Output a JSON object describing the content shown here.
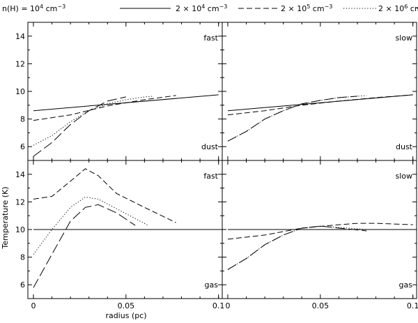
{
  "chart_data": {
    "type": "line",
    "layout": "2x2",
    "legend": {
      "placement": "top",
      "entries": [
        {
          "label_base": "n(H) = 10",
          "label_exp": "4",
          "label_unit": " cm",
          "label_unit_exp": "−3",
          "style": "solid"
        },
        {
          "label_base": "2 × 10",
          "label_exp": "4",
          "label_unit": " cm",
          "label_unit_exp": "−3",
          "style": "short-dash"
        },
        {
          "label_base": "2 × 10",
          "label_exp": "5",
          "label_unit": " cm",
          "label_unit_exp": "−3",
          "style": "dotted"
        },
        {
          "label_base": "2 × 10",
          "label_exp": "6",
          "label_unit": " cm",
          "label_unit_exp": "−3",
          "style": "long-dash"
        }
      ]
    },
    "xlabel": "radius (pc)",
    "ylabel": "Temperature (K)",
    "xlim": [
      -0.003,
      0.102
    ],
    "xticks": [
      {
        "v": 0,
        "label": "0"
      },
      {
        "v": 0.05,
        "label": "0.05"
      },
      {
        "v": 0.1,
        "label": "0.1"
      }
    ],
    "panels": [
      {
        "id": "top-left",
        "corner_label": "fast",
        "bottom_label": "dust",
        "ylim": [
          5,
          15
        ],
        "yticks": [
          "6",
          "8",
          "10",
          "12",
          "14"
        ],
        "yticks_values": [
          6,
          8,
          10,
          12,
          14
        ],
        "series": [
          {
            "style": "solid",
            "x": [
              0,
              0.1
            ],
            "y": [
              8.6,
              9.75
            ]
          },
          {
            "style": "short-dash",
            "x": [
              0,
              0.02,
              0.04,
              0.06,
              0.077
            ],
            "y": [
              7.9,
              8.3,
              8.95,
              9.4,
              9.7
            ]
          },
          {
            "style": "dotted",
            "x": [
              0,
              0.01,
              0.02,
              0.03,
              0.04,
              0.05,
              0.06,
              0.065
            ],
            "y": [
              6.1,
              6.8,
              7.8,
              8.6,
              9.1,
              9.4,
              9.6,
              9.65
            ]
          },
          {
            "style": "long-dash",
            "x": [
              0,
              0.01,
              0.02,
              0.03,
              0.04,
              0.05
            ],
            "y": [
              5.3,
              6.3,
              7.6,
              8.6,
              9.3,
              9.6
            ]
          }
        ]
      },
      {
        "id": "top-right",
        "corner_label": "slow",
        "bottom_label": "dust",
        "ylim": [
          5,
          15
        ],
        "yticks": [
          "6",
          "8",
          "10",
          "12",
          "14"
        ],
        "yticks_values": [
          6,
          8,
          10,
          12,
          14
        ],
        "series": [
          {
            "style": "solid",
            "x": [
              0,
              0.1
            ],
            "y": [
              8.6,
              9.75
            ]
          },
          {
            "style": "short-dash",
            "x": [
              0,
              0.02,
              0.04,
              0.06,
              0.08,
              0.1
            ],
            "y": [
              8.3,
              8.6,
              9.0,
              9.3,
              9.55,
              9.75
            ]
          },
          {
            "style": "dotted",
            "x": [
              0,
              0.01,
              0.02,
              0.03,
              0.04,
              0.05,
              0.06,
              0.075
            ],
            "y": [
              6.4,
              7.1,
              8.0,
              8.6,
              9.1,
              9.35,
              9.55,
              9.7
            ]
          },
          {
            "style": "long-dash",
            "x": [
              0,
              0.01,
              0.02,
              0.03,
              0.04,
              0.05,
              0.06,
              0.07
            ],
            "y": [
              6.4,
              7.1,
              8.0,
              8.6,
              9.1,
              9.35,
              9.55,
              9.65
            ]
          }
        ]
      },
      {
        "id": "bottom-left",
        "corner_label": "fast",
        "bottom_label": "gas",
        "ylim": [
          5,
          15
        ],
        "yticks": [
          "6",
          "8",
          "10",
          "12",
          "14"
        ],
        "yticks_values": [
          6,
          8,
          10,
          12,
          14
        ],
        "series": [
          {
            "style": "solid",
            "x": [
              0,
              0.1
            ],
            "y": [
              10.0,
              10.0
            ]
          },
          {
            "style": "short-dash",
            "x": [
              0,
              0.01,
              0.02,
              0.028,
              0.035,
              0.045,
              0.06,
              0.077
            ],
            "y": [
              12.2,
              12.4,
              13.5,
              14.4,
              13.9,
              12.6,
              11.6,
              10.5
            ]
          },
          {
            "style": "dotted",
            "x": [
              0,
              0.01,
              0.02,
              0.028,
              0.035,
              0.045,
              0.055,
              0.062
            ],
            "y": [
              8.2,
              10.0,
              11.6,
              12.35,
              12.2,
              11.5,
              10.8,
              10.3
            ]
          },
          {
            "style": "long-dash",
            "x": [
              0,
              0.01,
              0.02,
              0.028,
              0.035,
              0.045,
              0.055
            ],
            "y": [
              5.8,
              8.2,
              10.6,
              11.6,
              11.8,
              11.2,
              10.3
            ]
          }
        ]
      },
      {
        "id": "bottom-right",
        "corner_label": "slow",
        "bottom_label": "gas",
        "ylim": [
          5,
          15
        ],
        "yticks": [
          "6",
          "8",
          "10",
          "12",
          "14"
        ],
        "yticks_values": [
          6,
          8,
          10,
          12,
          14
        ],
        "series": [
          {
            "style": "solid",
            "x": [
              0,
              0.1
            ],
            "y": [
              10.0,
              10.0
            ]
          },
          {
            "style": "short-dash",
            "x": [
              0,
              0.02,
              0.04,
              0.06,
              0.07,
              0.08,
              0.1
            ],
            "y": [
              9.3,
              9.6,
              10.1,
              10.35,
              10.45,
              10.45,
              10.35
            ]
          },
          {
            "style": "dotted",
            "x": [
              0,
              0.01,
              0.02,
              0.03,
              0.04,
              0.05,
              0.06,
              0.075
            ],
            "y": [
              7.1,
              7.9,
              8.9,
              9.6,
              10.1,
              10.25,
              10.15,
              10.0
            ]
          },
          {
            "style": "long-dash",
            "x": [
              0,
              0.01,
              0.02,
              0.03,
              0.04,
              0.05,
              0.06,
              0.075
            ],
            "y": [
              7.1,
              7.9,
              8.9,
              9.6,
              10.1,
              10.25,
              10.1,
              9.9
            ]
          }
        ]
      }
    ]
  }
}
